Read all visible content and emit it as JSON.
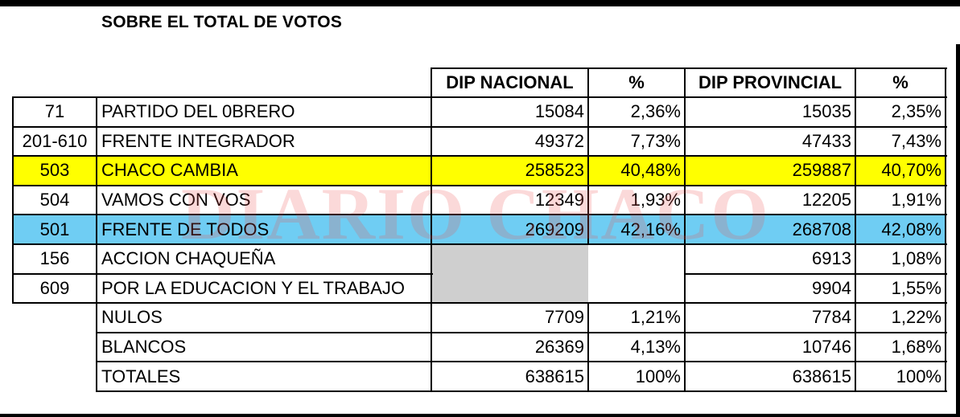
{
  "title": "SOBRE EL TOTAL DE VOTOS",
  "watermark": "DIARIO CHACO",
  "headers": {
    "dip_nacional": "DIP NACIONAL",
    "pct_nacional": "%",
    "dip_provincial": "DIP PROVINCIAL",
    "pct_provincial": "%"
  },
  "rows": [
    {
      "num": "71",
      "name": "PARTIDO DEL 0BRERO",
      "nac": "15084",
      "nac_pct": "2,36%",
      "prov": "15035",
      "prov_pct": "2,35%"
    },
    {
      "num": "201-610",
      "name": "FRENTE INTEGRADOR",
      "nac": "49372",
      "nac_pct": "7,73%",
      "prov": "47433",
      "prov_pct": "7,43%"
    },
    {
      "num": "503",
      "name": "CHACO CAMBIA",
      "nac": "258523",
      "nac_pct": "40,48%",
      "prov": "259887",
      "prov_pct": "40,70%"
    },
    {
      "num": "504",
      "name": "VAMOS CON VOS",
      "nac": "12349",
      "nac_pct": "1,93%",
      "prov": "12205",
      "prov_pct": "1,91%"
    },
    {
      "num": "501",
      "name": "FRENTE DE TODOS",
      "nac": "269209",
      "nac_pct": "42,16%",
      "prov": "268708",
      "prov_pct": "42,08%"
    },
    {
      "num": "156",
      "name": "ACCION CHAQUEÑA",
      "nac": "",
      "nac_pct": "",
      "prov": "6913",
      "prov_pct": "1,08%"
    },
    {
      "num": "609",
      "name": "POR LA EDUCACION Y EL TRABAJO",
      "nac": "",
      "nac_pct": "",
      "prov": "9904",
      "prov_pct": "1,55%"
    },
    {
      "num": "",
      "name": "NULOS",
      "nac": "7709",
      "nac_pct": "1,21%",
      "prov": "7784",
      "prov_pct": "1,22%"
    },
    {
      "num": "",
      "name": "BLANCOS",
      "nac": "26369",
      "nac_pct": "4,13%",
      "prov": "10746",
      "prov_pct": "1,68%"
    },
    {
      "num": "",
      "name": "TOTALES",
      "nac": "638615",
      "nac_pct": "100%",
      "prov": "638615",
      "prov_pct": "100%"
    }
  ],
  "colors": {
    "chaco_cambia_row": "#ffff00",
    "frente_de_todos_row": "#6fcdf3",
    "empty_nacional_cells": "#cfcfcf",
    "watermark": "#ec5252"
  }
}
